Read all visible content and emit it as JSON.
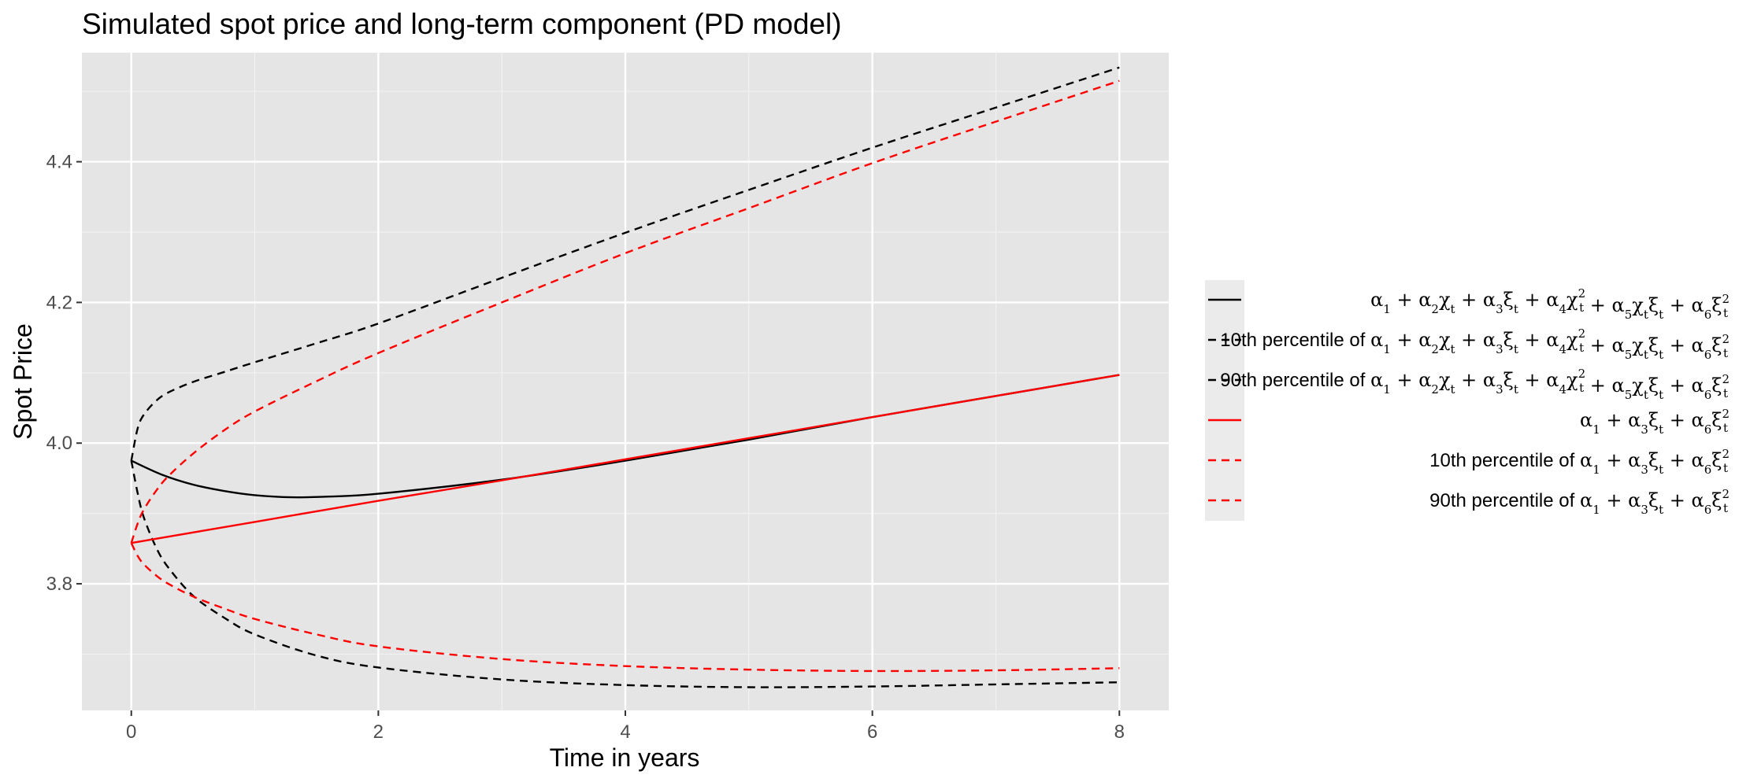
{
  "chart_data": {
    "type": "line",
    "title": "Simulated spot price and long-term component (PD model)",
    "xlabel": "Time in years",
    "ylabel": "Spot Price",
    "xlim": [
      -0.4,
      8.4
    ],
    "ylim": [
      3.62,
      4.555
    ],
    "x_ticks": [
      0,
      2,
      4,
      6,
      8
    ],
    "y_ticks": [
      3.8,
      4.0,
      4.2,
      4.4
    ],
    "grid": true,
    "legend_position": "right",
    "background": "#e5e5e5",
    "series": [
      {
        "name": "α₁ + α₂χₜ + α₃ξₜ + α₄χₜ² + α₅χₜξₜ + α₆ξₜ²",
        "label_prefix": "",
        "expr": "full",
        "color": "#000000",
        "dash": "solid",
        "points": [
          [
            0,
            3.975
          ],
          [
            0.25,
            3.955
          ],
          [
            0.5,
            3.941
          ],
          [
            0.75,
            3.932
          ],
          [
            1,
            3.926
          ],
          [
            1.3,
            3.923
          ],
          [
            1.6,
            3.924
          ],
          [
            2,
            3.928
          ],
          [
            3,
            3.948
          ],
          [
            4,
            3.975
          ],
          [
            5,
            4.005
          ],
          [
            6,
            4.037
          ],
          [
            7,
            4.067
          ],
          [
            8,
            4.097
          ]
        ]
      },
      {
        "name": "10th percentile of α₁ + α₂χₜ + α₃ξₜ + α₄χₜ² + α₅χₜξₜ + α₆ξₜ²",
        "label_prefix": "10th percentile of",
        "expr": "full",
        "color": "#000000",
        "dash": "dashed",
        "points": [
          [
            0,
            3.975
          ],
          [
            0.05,
            3.93
          ],
          [
            0.1,
            3.895
          ],
          [
            0.2,
            3.852
          ],
          [
            0.3,
            3.823
          ],
          [
            0.5,
            3.783
          ],
          [
            0.75,
            3.752
          ],
          [
            1,
            3.728
          ],
          [
            1.5,
            3.698
          ],
          [
            2,
            3.681
          ],
          [
            3,
            3.664
          ],
          [
            4,
            3.656
          ],
          [
            5,
            3.653
          ],
          [
            6,
            3.654
          ],
          [
            7,
            3.657
          ],
          [
            8,
            3.66
          ]
        ]
      },
      {
        "name": "90th percentile of α₁ + α₂χₜ + α₃ξₜ + α₄χₜ² + α₅χₜξₜ + α₆ξₜ²",
        "label_prefix": "90th percentile of",
        "expr": "full",
        "color": "#000000",
        "dash": "dashed",
        "points": [
          [
            0,
            3.975
          ],
          [
            0.05,
            4.02
          ],
          [
            0.1,
            4.04
          ],
          [
            0.2,
            4.06
          ],
          [
            0.3,
            4.072
          ],
          [
            0.5,
            4.087
          ],
          [
            0.75,
            4.101
          ],
          [
            1,
            4.115
          ],
          [
            1.5,
            4.142
          ],
          [
            2,
            4.17
          ],
          [
            3,
            4.235
          ],
          [
            4,
            4.299
          ],
          [
            5,
            4.36
          ],
          [
            6,
            4.42
          ],
          [
            7,
            4.477
          ],
          [
            8,
            4.534
          ]
        ]
      },
      {
        "name": "α₁ + α₃ξₜ + α₆ξₜ²",
        "label_prefix": "",
        "expr": "short",
        "color": "#ff0000",
        "dash": "solid",
        "points": [
          [
            0,
            3.858
          ],
          [
            1,
            3.888
          ],
          [
            2,
            3.918
          ],
          [
            3,
            3.947
          ],
          [
            4,
            3.977
          ],
          [
            5,
            4.007
          ],
          [
            6,
            4.037
          ],
          [
            7,
            4.067
          ],
          [
            8,
            4.097
          ]
        ]
      },
      {
        "name": "10th percentile of α₁ + α₃ξₜ + α₆ξₜ²",
        "label_prefix": "10th percentile of",
        "expr": "short",
        "color": "#ff0000",
        "dash": "dashed",
        "points": [
          [
            0,
            3.858
          ],
          [
            0.05,
            3.84
          ],
          [
            0.1,
            3.828
          ],
          [
            0.2,
            3.812
          ],
          [
            0.3,
            3.8
          ],
          [
            0.5,
            3.782
          ],
          [
            0.75,
            3.765
          ],
          [
            1,
            3.75
          ],
          [
            1.5,
            3.728
          ],
          [
            2,
            3.711
          ],
          [
            3,
            3.693
          ],
          [
            4,
            3.683
          ],
          [
            5,
            3.678
          ],
          [
            6,
            3.676
          ],
          [
            7,
            3.677
          ],
          [
            8,
            3.68
          ]
        ]
      },
      {
        "name": "90th percentile of α₁ + α₃ξₜ + α₆ξₜ²",
        "label_prefix": "90th percentile of",
        "expr": "short",
        "color": "#ff0000",
        "dash": "dashed",
        "points": [
          [
            0,
            3.858
          ],
          [
            0.05,
            3.885
          ],
          [
            0.1,
            3.905
          ],
          [
            0.2,
            3.932
          ],
          [
            0.3,
            3.953
          ],
          [
            0.5,
            3.985
          ],
          [
            0.75,
            4.018
          ],
          [
            1,
            4.045
          ],
          [
            1.5,
            4.088
          ],
          [
            2,
            4.128
          ],
          [
            3,
            4.2
          ],
          [
            4,
            4.27
          ],
          [
            5,
            4.334
          ],
          [
            6,
            4.398
          ],
          [
            7,
            4.457
          ],
          [
            8,
            4.515
          ]
        ]
      }
    ]
  }
}
